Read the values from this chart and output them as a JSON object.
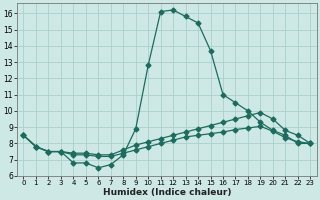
{
  "title": "",
  "xlabel": "Humidex (Indice chaleur)",
  "ylabel": "",
  "bg_color": "#cde8e5",
  "grid_color": "#aad0cc",
  "line_color": "#1e6b5e",
  "xlim": [
    -0.5,
    23.5
  ],
  "ylim": [
    6.0,
    16.6
  ],
  "yticks": [
    6,
    7,
    8,
    9,
    10,
    11,
    12,
    13,
    14,
    15,
    16
  ],
  "xticks": [
    0,
    1,
    2,
    3,
    4,
    5,
    6,
    7,
    8,
    9,
    10,
    11,
    12,
    13,
    14,
    15,
    16,
    17,
    18,
    19,
    20,
    21,
    22,
    23
  ],
  "line1_x": [
    0,
    1,
    2,
    3,
    4,
    5,
    6,
    7,
    8,
    9,
    10,
    11,
    12,
    13,
    14,
    15,
    16,
    17,
    18,
    19,
    20,
    21,
    22,
    23
  ],
  "line1_y": [
    8.5,
    7.8,
    7.5,
    7.5,
    6.8,
    6.8,
    6.5,
    6.7,
    7.3,
    8.9,
    12.8,
    16.1,
    16.2,
    15.8,
    15.4,
    13.7,
    11.0,
    10.5,
    10.0,
    9.3,
    8.8,
    8.5,
    8.0,
    8.0
  ],
  "line2_x": [
    0,
    1,
    2,
    3,
    4,
    5,
    6,
    7,
    8,
    9,
    10,
    11,
    12,
    13,
    14,
    15,
    16,
    17,
    18,
    19,
    20,
    21,
    22,
    23
  ],
  "line2_y": [
    8.5,
    7.8,
    7.5,
    7.5,
    7.4,
    7.4,
    7.3,
    7.3,
    7.6,
    7.9,
    8.1,
    8.3,
    8.5,
    8.7,
    8.9,
    9.1,
    9.3,
    9.5,
    9.7,
    9.9,
    9.5,
    8.8,
    8.5,
    8.0
  ],
  "line3_x": [
    0,
    1,
    2,
    3,
    4,
    5,
    6,
    7,
    8,
    9,
    10,
    11,
    12,
    13,
    14,
    15,
    16,
    17,
    18,
    19,
    20,
    21,
    22,
    23
  ],
  "line3_y": [
    8.5,
    7.8,
    7.5,
    7.5,
    7.3,
    7.3,
    7.2,
    7.2,
    7.4,
    7.6,
    7.8,
    8.0,
    8.2,
    8.4,
    8.5,
    8.6,
    8.7,
    8.85,
    8.95,
    9.05,
    8.75,
    8.35,
    8.1,
    8.0
  ]
}
